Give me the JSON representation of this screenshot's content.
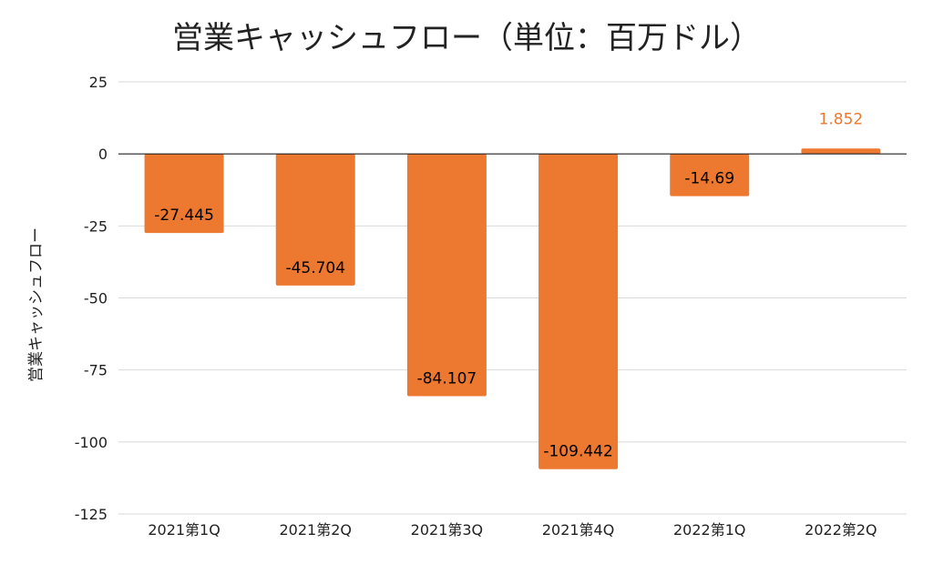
{
  "chart_data": {
    "type": "bar",
    "title": "営業キャッシュフロー（単位：百万ドル）",
    "ylabel": "営業キャッシュフロー",
    "xlabel": "",
    "categories": [
      "2021第1Q",
      "2021第2Q",
      "2021第3Q",
      "2021第4Q",
      "2022第1Q",
      "2022第2Q"
    ],
    "values": [
      -27.445,
      -45.704,
      -84.107,
      -109.442,
      -14.69,
      1.852
    ],
    "data_labels": [
      "-27.445",
      "-45.704",
      "-84.107",
      "-109.442",
      "-14.69",
      "1.852"
    ],
    "ylim": [
      -125,
      25
    ],
    "yticks": [
      25,
      0,
      -25,
      -50,
      -75,
      -100,
      -125
    ],
    "ytick_labels": [
      "25",
      "0",
      "-25",
      "-50",
      "-75",
      "-100",
      "-125"
    ],
    "grid": true,
    "legend": "none",
    "colors": {
      "bar": "#ED7830",
      "label_inside": "#000000",
      "label_outside": "#ED7830",
      "grid": "#d9d9d9",
      "zero_line": "#222222"
    }
  }
}
